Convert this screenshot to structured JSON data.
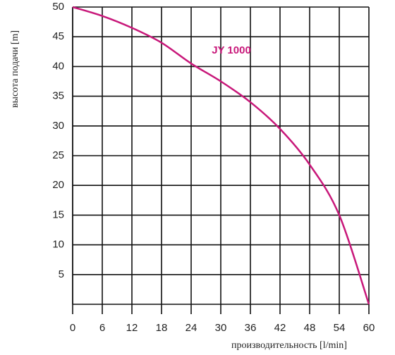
{
  "chart_data": {
    "type": "line",
    "x_label": "производительность [l/min]",
    "y_label": "высота подачи  [m]",
    "x": [
      0,
      6,
      12,
      18,
      24,
      30,
      36,
      42,
      48,
      54,
      60
    ],
    "series": [
      {
        "name": "JY 1000",
        "color": "#c8187a",
        "values": [
          50,
          48.5,
          46.5,
          44,
          40.5,
          37.5,
          34,
          29.5,
          23.5,
          15,
          0
        ]
      }
    ],
    "xlim": [
      0,
      60
    ],
    "xticks": [
      0,
      6,
      12,
      18,
      24,
      30,
      36,
      42,
      48,
      54,
      60
    ],
    "ylim": [
      0,
      50
    ],
    "yticks": [
      5,
      10,
      15,
      20,
      25,
      30,
      35,
      40,
      45,
      50
    ],
    "grid": true
  }
}
